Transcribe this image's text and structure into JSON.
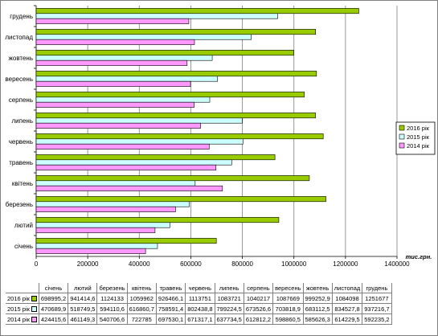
{
  "chart_data": {
    "type": "bar",
    "orientation": "horizontal",
    "categories": [
      "січень",
      "лютий",
      "березень",
      "квітень",
      "травень",
      "червень",
      "липень",
      "серпень",
      "вересень",
      "жовтень",
      "листопад",
      "грудень"
    ],
    "series": [
      {
        "name": "2016 рік",
        "color": "#99cc00",
        "values": [
          698995.2,
          941414.6,
          1124133,
          1059962,
          926466.1,
          1113751,
          1083721,
          1040217,
          1087669,
          999252.9,
          1084098,
          1251677
        ],
        "labels": [
          "698995,2",
          "941414,6",
          "1124133",
          "1059962",
          "926466,1",
          "1113751",
          "1083721",
          "1040217",
          "1087669",
          "999252,9",
          "1084098",
          "1251677"
        ]
      },
      {
        "name": "2015 рік",
        "color": "#ccffff",
        "values": [
          470689.9,
          518749.5,
          594110.6,
          616860.7,
          758591.4,
          802438.8,
          799224.5,
          673526.6,
          703818.9,
          683112.5,
          834527.8,
          937216.7
        ],
        "labels": [
          "470689,9",
          "518749,5",
          "594110,6",
          "616860,7",
          "758591,4",
          "802438,8",
          "799224,5",
          "673526,6",
          "703818,9",
          "683112,5",
          "834527,8",
          "937216,7"
        ]
      },
      {
        "name": "2014 рік",
        "color": "#ff99ff",
        "values": [
          424415.6,
          461149.3,
          540706.6,
          722785,
          697530.1,
          671317.1,
          637734.5,
          612812.2,
          598860.5,
          585626.3,
          614229.5,
          592235.2
        ],
        "labels": [
          "424415,6",
          "461149,3",
          "540706,6",
          "722785",
          "697530,1",
          "671317,1",
          "637734,5",
          "612812,2",
          "598860,5",
          "585626,3",
          "614229,5",
          "592235,2"
        ]
      }
    ],
    "xlim": [
      0,
      1400000
    ],
    "xticks": [
      "0",
      "200000",
      "400000",
      "600000",
      "800000",
      "1000000",
      "1200000",
      "1400000"
    ],
    "xtick_values": [
      0,
      200000,
      400000,
      600000,
      800000,
      1000000,
      1200000,
      1400000
    ],
    "unit_label": "тис.грн.",
    "grid": "vertical",
    "legend_position": "right"
  }
}
